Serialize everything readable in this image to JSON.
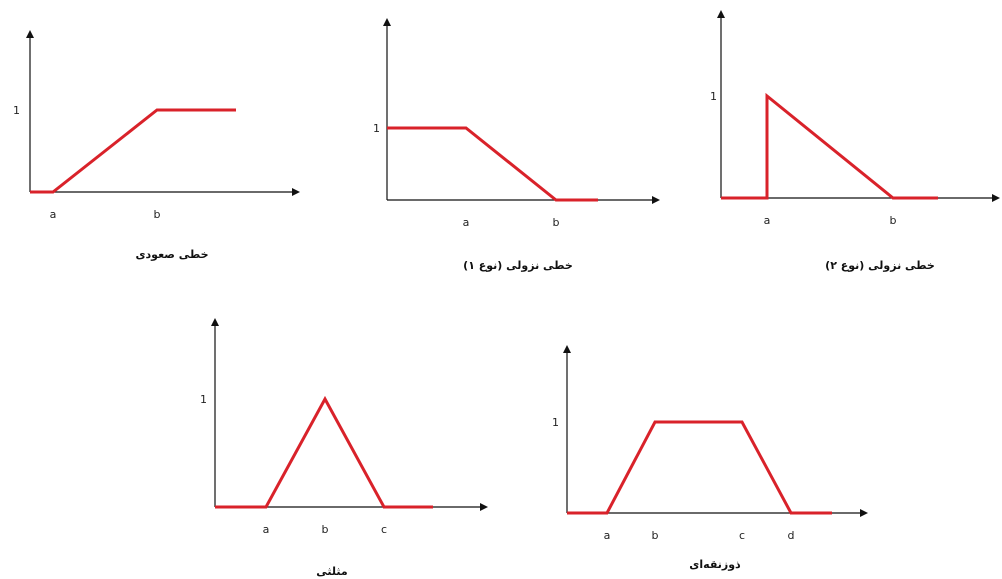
{
  "panels": [
    {
      "id": "increasing",
      "caption": "خطی صعودی",
      "y_label": "1",
      "x_labels": [
        "a",
        "b"
      ],
      "points": [
        [
          0,
          0
        ],
        [
          "a",
          0
        ],
        [
          "b",
          1
        ],
        [
          "end",
          1
        ]
      ]
    },
    {
      "id": "decreasing-1",
      "caption": "خطی نزولی (نوع ۱)",
      "y_label": "1",
      "x_labels": [
        "a",
        "b"
      ],
      "points": [
        [
          0,
          1
        ],
        [
          "a",
          1
        ],
        [
          "b",
          0
        ],
        [
          "end",
          0
        ]
      ]
    },
    {
      "id": "decreasing-2",
      "caption": "خطی نزولی (نوع ۲)",
      "y_label": "1",
      "x_labels": [
        "a",
        "b"
      ],
      "points": [
        [
          0,
          0
        ],
        [
          "a",
          0
        ],
        [
          "a",
          1
        ],
        [
          "b",
          0
        ],
        [
          "end",
          0
        ]
      ]
    },
    {
      "id": "triangular",
      "caption": "مثلثی",
      "y_label": "1",
      "x_labels": [
        "a",
        "b",
        "c"
      ],
      "points": [
        [
          0,
          0
        ],
        [
          "a",
          0
        ],
        [
          "b",
          1
        ],
        [
          "c",
          0
        ],
        [
          "end",
          0
        ]
      ]
    },
    {
      "id": "trapezoidal",
      "caption": "ذوزنقه‌ای",
      "y_label": "1",
      "x_labels": [
        "a",
        "b",
        "c",
        "d"
      ],
      "points": [
        [
          0,
          0
        ],
        [
          "a",
          0
        ],
        [
          "b",
          1
        ],
        [
          "c",
          1
        ],
        [
          "d",
          0
        ],
        [
          "end",
          0
        ]
      ]
    }
  ],
  "colors": {
    "curve": "#d9222a",
    "axis": "#111111"
  }
}
